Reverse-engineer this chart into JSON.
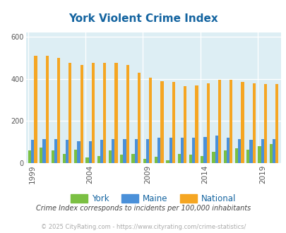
{
  "title": "York Violent Crime Index",
  "years": [
    1999,
    2000,
    2001,
    2002,
    2003,
    2004,
    2005,
    2006,
    2007,
    2008,
    2009,
    2010,
    2011,
    2012,
    2013,
    2014,
    2015,
    2016,
    2017,
    2018,
    2019,
    2020
  ],
  "york": [
    60,
    75,
    62,
    42,
    65,
    28,
    32,
    62,
    40,
    45,
    20,
    30,
    15,
    45,
    40,
    35,
    55,
    60,
    70,
    65,
    80,
    90
  ],
  "maine": [
    110,
    115,
    115,
    110,
    105,
    105,
    110,
    115,
    115,
    115,
    115,
    120,
    120,
    120,
    120,
    125,
    130,
    120,
    115,
    110,
    115,
    115
  ],
  "national": [
    510,
    510,
    500,
    475,
    465,
    475,
    475,
    475,
    465,
    430,
    405,
    390,
    385,
    365,
    370,
    380,
    395,
    395,
    385,
    380,
    375,
    375
  ],
  "york_color": "#7bc043",
  "maine_color": "#4a90d9",
  "national_color": "#f5a623",
  "bg_color": "#ddeef4",
  "title_color": "#1464a0",
  "tick_color": "#555555",
  "footer_color": "#aaaaaa",
  "subtitle_color": "#444444",
  "legend_color": "#1464a0",
  "ylim": [
    0,
    620
  ],
  "yticks": [
    0,
    200,
    400,
    600
  ],
  "xlabel_ticks": [
    1999,
    2004,
    2009,
    2014,
    2019
  ],
  "footer_text": "© 2025 CityRating.com - https://www.cityrating.com/crime-statistics/",
  "subtitle_text": "Crime Index corresponds to incidents per 100,000 inhabitants"
}
